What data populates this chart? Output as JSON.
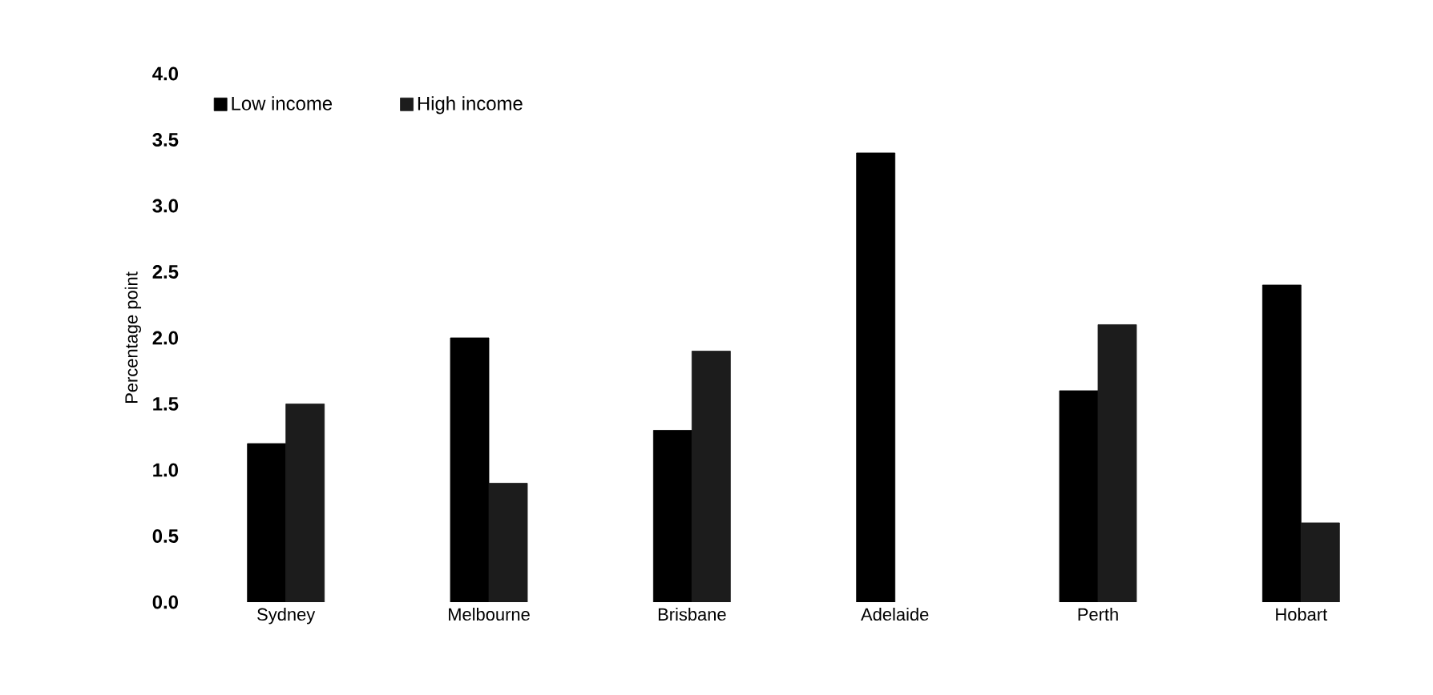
{
  "chart_data": {
    "type": "bar",
    "ylabel": "Percentage point",
    "categories": [
      "Sydney",
      "Melbourne",
      "Brisbane",
      "Adelaide",
      "Perth",
      "Hobart"
    ],
    "series": [
      {
        "name": "Low income",
        "color": "#000000",
        "values": [
          1.2,
          2.0,
          1.3,
          3.4,
          1.6,
          2.4
        ]
      },
      {
        "name": "High income",
        "color": "#1c1c1c",
        "values": [
          1.5,
          0.9,
          1.9,
          null,
          2.1,
          0.6
        ]
      }
    ],
    "ylim": [
      0,
      4
    ],
    "yticks": [
      {
        "value": 0,
        "label": "0.0"
      },
      {
        "value": 0.5,
        "label": "0.5"
      },
      {
        "value": 1,
        "label": "1.0"
      },
      {
        "value": 1.5,
        "label": "1.5"
      },
      {
        "value": 2,
        "label": "2.0"
      },
      {
        "value": 2.5,
        "label": "2.5"
      },
      {
        "value": 3,
        "label": "3.0"
      },
      {
        "value": 3.5,
        "label": "3.5"
      },
      {
        "value": 4,
        "label": "4.0"
      }
    ],
    "legend": "top left"
  }
}
